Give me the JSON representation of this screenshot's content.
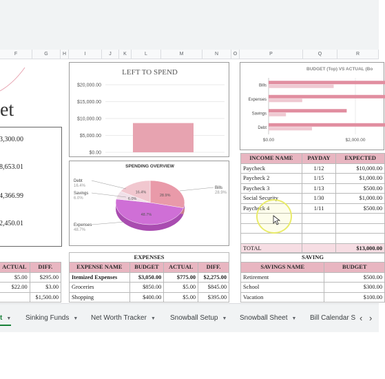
{
  "columns": [
    "F",
    "G",
    "H",
    "I",
    "J",
    "K",
    "L",
    "M",
    "N",
    "O",
    "P",
    "Q",
    "R"
  ],
  "left_panel": {
    "title_fragment": "et",
    "values": [
      "3,300.00",
      "8,653.01",
      "4,366.99",
      "2,450.01"
    ]
  },
  "left_to_spend": {
    "title": "LEFT TO SPEND",
    "chart_data": {
      "type": "bar",
      "title": "LEFT TO SPEND",
      "categories": [
        ""
      ],
      "values": [
        8653.01
      ],
      "ylim": [
        0,
        20000
      ],
      "yticks": [
        "$20,000.00",
        "$15,000.00",
        "$10,000.00",
        "$5,000.00",
        "$0.00"
      ],
      "color": "#e7a3b0",
      "grid": true
    }
  },
  "spending_overview": {
    "title": "SPENDING OVERVIEW",
    "chart_data": {
      "type": "pie",
      "title": "SPENDING OVERVIEW",
      "slices": [
        {
          "name": "Bills",
          "value": 28.9,
          "label": "Bills",
          "pct": "28.9%",
          "color": "#e99aa9"
        },
        {
          "name": "Expenses",
          "value": 48.7,
          "label": "Expenses",
          "pct": "48.7%",
          "color": "#cf6fd6"
        },
        {
          "name": "Savings",
          "value": 6.0,
          "label": "Savings",
          "pct": "6.0%",
          "color": "#f0e0e8"
        },
        {
          "name": "Debt",
          "value": 16.4,
          "label": "Debt",
          "pct": "16.4%",
          "color": "#f1c7cf"
        }
      ]
    }
  },
  "budget_vs_actual": {
    "title": "BUDGET (Top) VS ACTUAL (Bo",
    "chart_data": {
      "type": "bar",
      "orientation": "horizontal",
      "title": "BUDGET (Top) VS ACTUAL (Bo",
      "categories": [
        "Bills",
        "Expenses",
        "Savings",
        "Debt"
      ],
      "series": [
        {
          "name": "Budget",
          "values": [
            2700,
            3050,
            1800,
            2700
          ],
          "color": "#e18ea0"
        },
        {
          "name": "Actual",
          "values": [
            1500,
            775,
            400,
            1000
          ],
          "color": "#efc9d2"
        }
      ],
      "xticks": [
        "$0.00",
        "$2,000.00"
      ],
      "xlim": [
        0,
        3000
      ]
    }
  },
  "income": {
    "headers": [
      "INCOME NAME",
      "PAYDAY",
      "EXPECTED"
    ],
    "rows": [
      [
        "Paycheck",
        "1/12",
        "$10,000.00"
      ],
      [
        "Paycheck 2",
        "1/15",
        "$1,000.00"
      ],
      [
        "Paycheck 3",
        "1/13",
        "$500.00"
      ],
      [
        "Social Security",
        "1/30",
        "$1,000.00"
      ],
      [
        "Paycheck 4",
        "1/11",
        "$500.00"
      ],
      [
        "",
        "",
        ""
      ],
      [
        "",
        "",
        ""
      ],
      [
        "",
        "",
        ""
      ]
    ],
    "total_label": "TOTAL",
    "total_value": "$13,000.00"
  },
  "left_table": {
    "headers": [
      "ACTUAL",
      "DIFF."
    ],
    "rows": [
      [
        "$5.00",
        "$295.00"
      ],
      [
        "$22.00",
        "$3.00"
      ],
      [
        "",
        "$1,500.00"
      ]
    ]
  },
  "expenses": {
    "section_title": "EXPENSES",
    "headers": [
      "EXPENSE NAME",
      "BUDGET",
      "ACTUAL",
      "DIFF."
    ],
    "rows": [
      [
        "Itemized Expenses",
        "$3,050.00",
        "$775.00",
        "$2,275.00"
      ],
      [
        "Groceries",
        "$850.00",
        "$5.00",
        "$845.00"
      ],
      [
        "Shopping",
        "$400.00",
        "$5.00",
        "$395.00"
      ]
    ]
  },
  "saving": {
    "section_title": "SAVING",
    "headers": [
      "SAVINGS NAME",
      "BUDGET"
    ],
    "rows": [
      [
        "Retirement",
        "$500.00"
      ],
      [
        "School",
        "$300.00"
      ],
      [
        "Vacation",
        "$100.00"
      ]
    ]
  },
  "sheet_tabs": [
    "t",
    "Sinking Funds",
    "Net Worth Tracker",
    "Snowball Setup",
    "Snowball Sheet",
    "Bill Calendar S"
  ],
  "tab_nav": {
    "prev": "‹",
    "next": "›"
  }
}
